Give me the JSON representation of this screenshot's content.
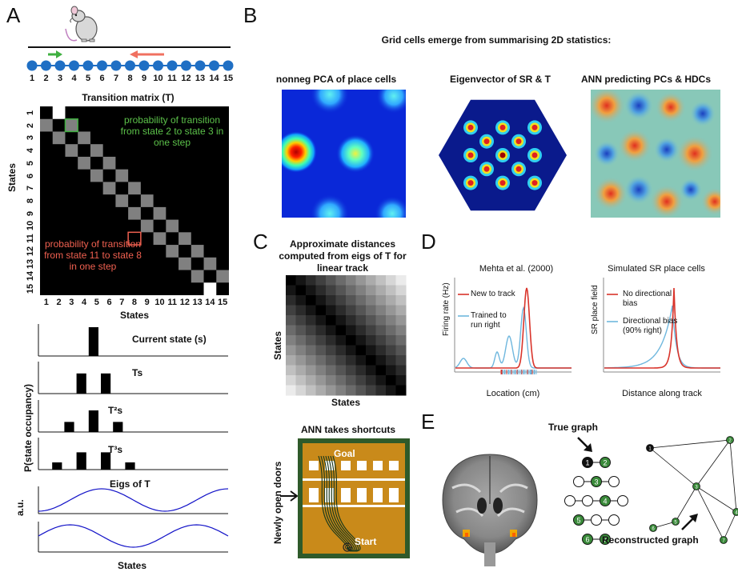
{
  "panels": {
    "a": "A",
    "b": "B",
    "c": "C",
    "d": "D",
    "e": "E"
  },
  "panel_a": {
    "states": [
      "1",
      "2",
      "3",
      "4",
      "5",
      "6",
      "7",
      "8",
      "9",
      "10",
      "11",
      "12",
      "13",
      "14",
      "15"
    ],
    "matrix_title": "Transition matrix (T)",
    "matrix_ylabel": "States",
    "matrix_xlabel": "States",
    "annotation_green": "probability of transition from state 2 to state 3 in one step",
    "annotation_red": "probability of transition from state 11 to state 8 in one step",
    "occupancy_ylabel": "P(state occupancy)",
    "current_state_label": "Current state (s)",
    "ts_label": "Ts",
    "t2s_label": "T²s",
    "t3s_label": "T³s",
    "eigs_label": "Eigs of T",
    "au_label": "a.u.",
    "states_xlabel": "States",
    "colors": {
      "node": "#1f6fc4",
      "green_arrow": "#3fb040",
      "red_arrow": "#f07060"
    }
  },
  "panel_b": {
    "title": "Grid cells emerge from summarising 2D statistics:",
    "map1_title": "nonneg PCA of place cells",
    "map2_title": "Eigenvector of SR & T",
    "map3_title": "ANN predicting PCs & HDCs"
  },
  "panel_c": {
    "title": "Approximate distances computed from eigs of T for linear track",
    "ylabel": "States",
    "xlabel": "States",
    "ann_title": "ANN takes shortcuts",
    "doors_label": "Newly open doors",
    "goal_label": "Goal",
    "start_label": "Start"
  },
  "panel_d": {
    "left_title": "Mehta et al. (2000)",
    "left_ylabel": "Firing rate (Hz)",
    "left_xlabel": "Location (cm)",
    "legend_new": "New to track",
    "legend_trained": "Trained to run  right",
    "right_title": "Simulated SR place cells",
    "right_ylabel": "SR place field",
    "right_xlabel": "Distance along track",
    "legend_nodir": "No directional bias",
    "legend_dir": "Directional bias (90% right)",
    "colors": {
      "red": "#d9342b",
      "blue": "#6fb7de"
    }
  },
  "panel_e": {
    "true_graph_label": "True graph",
    "reconstructed_label": "Reconstructed graph",
    "true_nodes": [
      "1",
      "2",
      "3",
      "4",
      "5",
      "6",
      "7"
    ],
    "recon_nodes": [
      "1",
      "2",
      "3",
      "4",
      "5",
      "6",
      "7"
    ]
  }
}
